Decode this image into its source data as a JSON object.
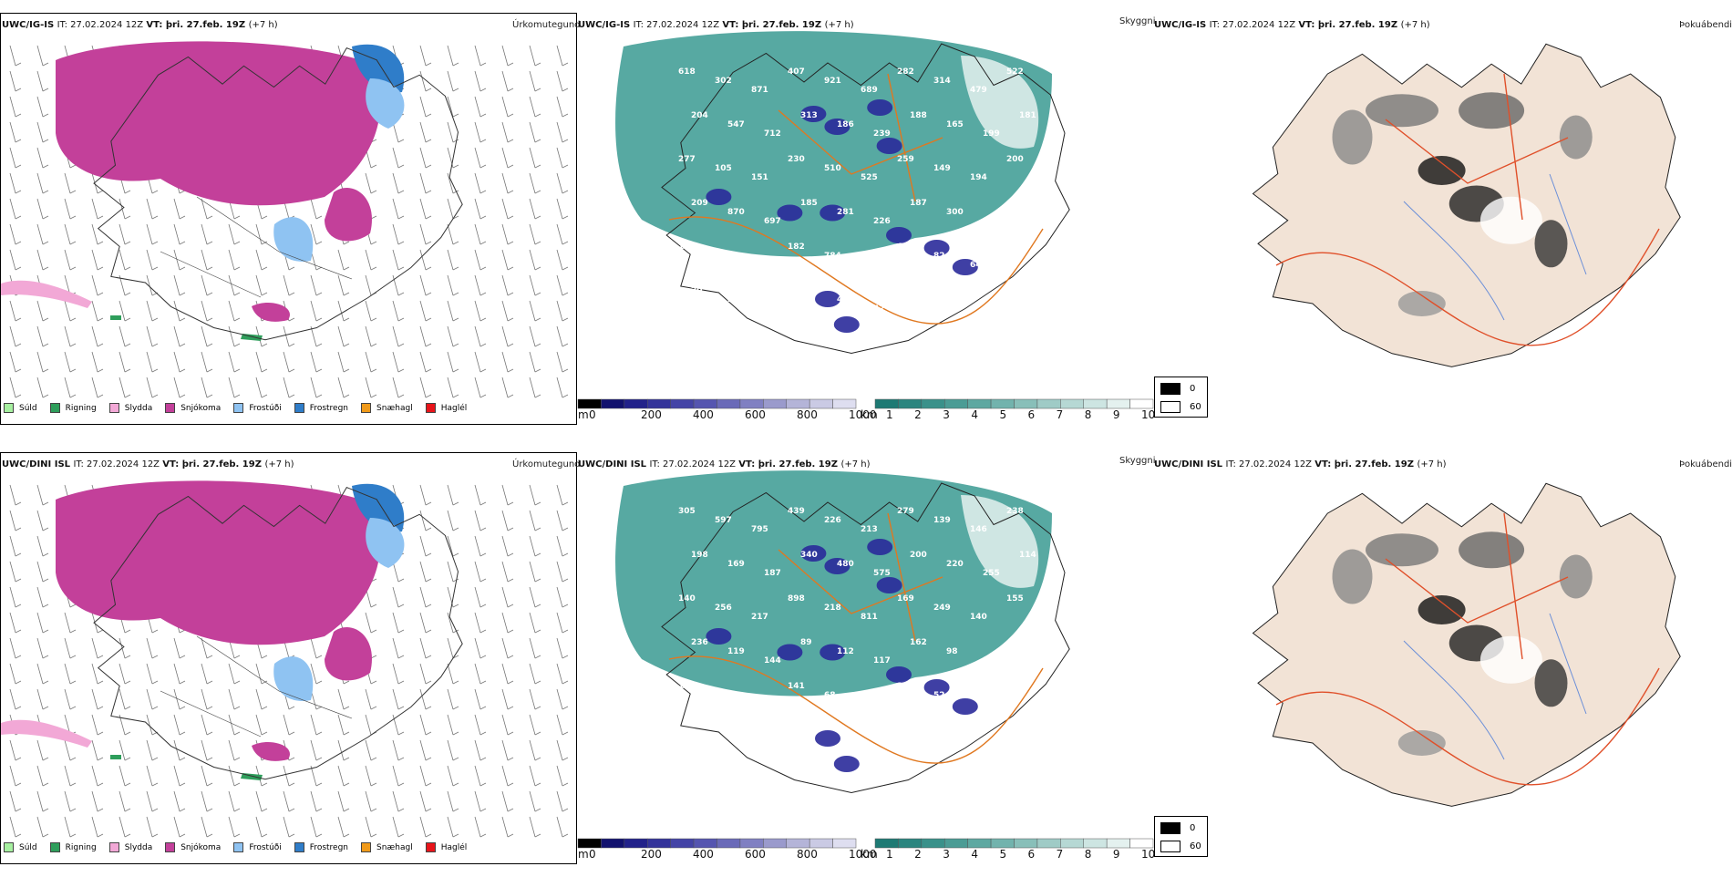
{
  "rows": [
    {
      "model": "UWC/IG-IS",
      "run_text": "IT: 27.02.2024 12Z",
      "valid_label": "VT:",
      "valid_text": "þri. 27.feb. 19Z",
      "lead_text": "(+7 h)",
      "cloud_labels": [
        "618",
        "302",
        "871",
        "407",
        "921",
        "689",
        "282",
        "314",
        "479",
        "522",
        "204",
        "547",
        "712",
        "313",
        "186",
        "239",
        "188",
        "165",
        "199",
        "181",
        "277",
        "105",
        "151",
        "230",
        "510",
        "525",
        "259",
        "149",
        "194",
        "200",
        "209",
        "870",
        "697",
        "185",
        "281",
        "226",
        "187",
        "300",
        "145",
        "113",
        "136",
        "471",
        "374",
        "182",
        "784",
        "816",
        "63",
        "82",
        "64",
        "85",
        "20",
        "202",
        "90",
        "251",
        "48",
        "42"
      ]
    },
    {
      "model": "UWC/DINI ISL",
      "run_text": "IT: 27.02.2024 12Z",
      "valid_label": "VT:",
      "valid_text": "þri. 27.feb. 19Z",
      "lead_text": "(+7 h)",
      "cloud_labels": [
        "305",
        "597",
        "795",
        "439",
        "226",
        "213",
        "279",
        "139",
        "146",
        "238",
        "198",
        "169",
        "187",
        "340",
        "480",
        "575",
        "200",
        "220",
        "255",
        "114",
        "140",
        "256",
        "217",
        "898",
        "218",
        "811",
        "169",
        "249",
        "140",
        "155",
        "236",
        "119",
        "144",
        "89",
        "112",
        "117",
        "162",
        "98",
        "504",
        "233",
        "170",
        "374",
        "305",
        "141",
        "68",
        "72",
        "28",
        "52"
      ]
    }
  ],
  "panel_titles": {
    "precip": "Úrkomutegund",
    "cloud": "Skyggni",
    "fog": "Þokuábendi"
  },
  "precip_legend": [
    {
      "label": "Súld",
      "color": "#a6f0a0"
    },
    {
      "label": "Rigning",
      "color": "#2e9e5b"
    },
    {
      "label": "Slydda",
      "color": "#f2a8d6"
    },
    {
      "label": "Snjókoma",
      "color": "#c3409a"
    },
    {
      "label": "Frostúði",
      "color": "#8fc3f2"
    },
    {
      "label": "Frostregn",
      "color": "#2f7dc9"
    },
    {
      "label": "Snæhagl",
      "color": "#f09a1a"
    },
    {
      "label": "Haglél",
      "color": "#e8141a"
    }
  ],
  "cloud_base_scale": {
    "unit": "m",
    "ticks": [
      "0",
      "200",
      "400",
      "600",
      "800",
      "1000"
    ],
    "colors": [
      "#000000",
      "#12126e",
      "#22228a",
      "#33339a",
      "#4444a6",
      "#5555b0",
      "#6a6ab8",
      "#8080c2",
      "#9a9acc",
      "#b4b4d8",
      "#cacae4",
      "#dedef0"
    ]
  },
  "visibility_scale": {
    "unit": "km",
    "ticks": [
      "1",
      "2",
      "3",
      "4",
      "5",
      "6",
      "7",
      "8",
      "9",
      "10"
    ],
    "colors": [
      "#1e7a74",
      "#2b857f",
      "#3a918a",
      "#4b9c95",
      "#5ea8a1",
      "#72b3ad",
      "#88bfb9",
      "#9fcbc6",
      "#b6d8d4",
      "#cde5e2",
      "#e4f1ef",
      "#ffffff"
    ]
  },
  "fog_legend": [
    {
      "label": "0",
      "color": "#000000"
    },
    {
      "label": "60",
      "color": "#ffffff"
    }
  ],
  "map_colors": {
    "snow": "#c3409a",
    "freezing_rain": "#2f7dc9",
    "freezing_drizzle": "#8fc3f2",
    "rain": "#2e9e5b",
    "sleet": "#f2a8d6",
    "visibility_teal": "#3a9a92",
    "cloud_blue": "#2a2a9a",
    "land_beige": "#f2e3d6",
    "roads_orange": "#e07820",
    "rivers_blue": "#6b8fd8"
  }
}
